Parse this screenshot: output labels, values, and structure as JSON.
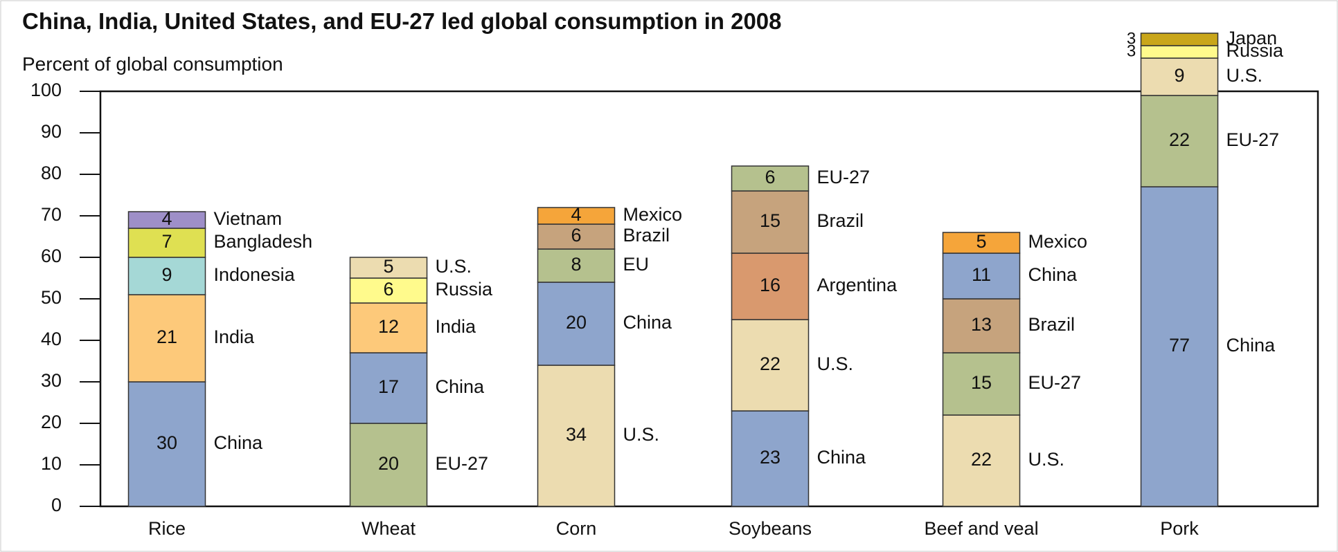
{
  "chart_data": {
    "type": "stacked-bar",
    "title": "China, India, United States, and EU-27 led global consumption in 2008",
    "subtitle": "Percent of global consumption",
    "categories": [
      "Rice",
      "Wheat",
      "Corn",
      "Soybeans",
      "Beef and veal",
      "Pork"
    ],
    "stacks": [
      [
        {
          "name": "China",
          "value": 30,
          "color": "#8ea5cc"
        },
        {
          "name": "India",
          "value": 21,
          "color": "#fdc97a"
        },
        {
          "name": "Indonesia",
          "value": 9,
          "color": "#a5d8d6"
        },
        {
          "name": "Bangladesh",
          "value": 7,
          "color": "#dfe052"
        },
        {
          "name": "Vietnam",
          "value": 4,
          "color": "#9e8fc8"
        }
      ],
      [
        {
          "name": "EU-27",
          "value": 20,
          "color": "#b5c18e"
        },
        {
          "name": "China",
          "value": 17,
          "color": "#8ea5cc"
        },
        {
          "name": "India",
          "value": 12,
          "color": "#fdc97a"
        },
        {
          "name": "Russia",
          "value": 6,
          "color": "#fffa8c"
        },
        {
          "name": "U.S.",
          "value": 5,
          "color": "#ecdcb0"
        }
      ],
      [
        {
          "name": "U.S.",
          "value": 34,
          "color": "#ecdcb0"
        },
        {
          "name": "China",
          "value": 20,
          "color": "#8ea5cc"
        },
        {
          "name": "EU",
          "value": 8,
          "color": "#b5c18e"
        },
        {
          "name": "Brazil",
          "value": 6,
          "color": "#c6a37d"
        },
        {
          "name": "Mexico",
          "value": 4,
          "color": "#f5a53a"
        }
      ],
      [
        {
          "name": "China",
          "value": 23,
          "color": "#8ea5cc"
        },
        {
          "name": "U.S.",
          "value": 22,
          "color": "#ecdcb0"
        },
        {
          "name": "Argentina",
          "value": 16,
          "color": "#d9996e"
        },
        {
          "name": "Brazil",
          "value": 15,
          "color": "#c6a37d"
        },
        {
          "name": "EU-27",
          "value": 6,
          "color": "#b5c18e"
        }
      ],
      [
        {
          "name": "U.S.",
          "value": 22,
          "color": "#ecdcb0"
        },
        {
          "name": "EU-27",
          "value": 15,
          "color": "#b5c18e"
        },
        {
          "name": "Brazil",
          "value": 13,
          "color": "#c6a37d"
        },
        {
          "name": "China",
          "value": 11,
          "color": "#8ea5cc"
        },
        {
          "name": "Mexico",
          "value": 5,
          "color": "#f5a53a"
        }
      ],
      [
        {
          "name": "China",
          "value": 77,
          "color": "#8ea5cc"
        },
        {
          "name": "EU-27",
          "value": 22,
          "color": "#b5c18e"
        },
        {
          "name": "U.S.",
          "value": 9,
          "color": "#ecdcb0"
        },
        {
          "name": "Russia",
          "value": 3,
          "color": "#fffa8c"
        },
        {
          "name": "Japan",
          "value": 3,
          "color": "#c9a61a"
        }
      ]
    ],
    "ylim": [
      0,
      100
    ],
    "yticks": [
      0,
      10,
      20,
      30,
      40,
      50,
      60,
      70,
      80,
      90,
      100
    ]
  }
}
